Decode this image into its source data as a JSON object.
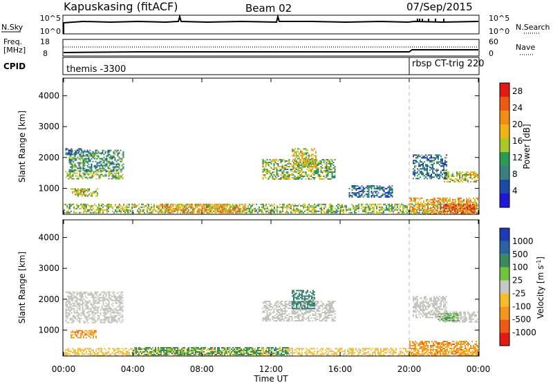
{
  "header": {
    "station": "Kapuskasing (fitACF)",
    "beam": "Beam 02",
    "date": "07/Sep/2015"
  },
  "nsky_panel": {
    "label": "N.Sky",
    "right_label": "N.Search",
    "ticks": [
      "10^5",
      "10^0"
    ],
    "right_ticks": [
      "10^5",
      "10^0"
    ]
  },
  "freq_panel": {
    "label_line1": "Freq.",
    "label_line2": "[MHz]",
    "ticks": [
      "18",
      "8"
    ],
    "right_ticks": [
      "60",
      "0"
    ],
    "right_label": "Nave"
  },
  "cpid_panel": {
    "label": "CPID",
    "segments": [
      {
        "name": "themis -3300",
        "start_hour": 0
      },
      {
        "name": "rbsp CT-trig 220",
        "start_hour": 20.05
      }
    ]
  },
  "colors": {
    "power_scale": [
      "#1d17d8",
      "#1d4aa6",
      "#3b7e7e",
      "#2b9a52",
      "#a8c82a",
      "#f2b315",
      "#f18d14",
      "#ee5a13",
      "#e31a14"
    ],
    "velocity_scale": [
      "#e31a14",
      "#ee5a13",
      "#f5951a",
      "#f6bd2a",
      "#c8c8c4",
      "#6fc43c",
      "#3b8a5e",
      "#2a63a3",
      "#1d3bb5"
    ],
    "ground_scatter": "#c4c4bc"
  },
  "chart_data": [
    {
      "type": "heatmap",
      "panel": "power",
      "ylabel": "Slant Range [km]",
      "xlabel": "",
      "xlim": [
        0,
        24
      ],
      "ylim": [
        180,
        4550
      ],
      "yticks": [
        "1000",
        "2000",
        "3000",
        "4000"
      ],
      "colorbar": {
        "label": "Power [dB]",
        "ticks": [
          "4",
          "8",
          "12",
          "16",
          "20",
          "24",
          "28"
        ],
        "range": [
          0,
          30
        ]
      },
      "regions": [
        {
          "t0": 0.1,
          "t1": 3.4,
          "r0": 1300,
          "r1": 1600,
          "level": 14
        },
        {
          "t0": 0.3,
          "t1": 3.5,
          "r0": 1550,
          "r1": 2250,
          "level": 10
        },
        {
          "t0": 0.4,
          "t1": 2.0,
          "r0": 750,
          "r1": 1000,
          "level": 16
        },
        {
          "t0": 0.1,
          "t1": 1.0,
          "r0": 2100,
          "r1": 2300,
          "level": 6
        },
        {
          "t0": 0.0,
          "t1": 24.0,
          "r0": 190,
          "r1": 500,
          "level": 14
        },
        {
          "t0": 5.5,
          "t1": 10.5,
          "r0": 190,
          "r1": 500,
          "level": 20
        },
        {
          "t0": 11.5,
          "t1": 15.7,
          "r0": 1300,
          "r1": 1950,
          "level": 14
        },
        {
          "t0": 13.2,
          "t1": 14.6,
          "r0": 1700,
          "r1": 2300,
          "level": 17
        },
        {
          "t0": 20.0,
          "t1": 24.0,
          "r0": 190,
          "r1": 700,
          "level": 20
        },
        {
          "t0": 21.8,
          "t1": 23.8,
          "r0": 190,
          "r1": 500,
          "level": 26
        },
        {
          "t0": 22.0,
          "t1": 24.0,
          "r0": 1200,
          "r1": 1550,
          "level": 17
        },
        {
          "t0": 20.2,
          "t1": 22.2,
          "r0": 1300,
          "r1": 2100,
          "level": 8
        },
        {
          "t0": 16.5,
          "t1": 19.0,
          "r0": 700,
          "r1": 1100,
          "level": 7
        }
      ]
    },
    {
      "type": "heatmap",
      "panel": "velocity",
      "ylabel": "Slant Range [km]",
      "xlabel": "Time UT",
      "xlim": [
        0,
        24
      ],
      "ylim": [
        180,
        4550
      ],
      "yticks": [
        "1000",
        "2000",
        "3000",
        "4000"
      ],
      "xticks": [
        "00:00",
        "04:00",
        "08:00",
        "12:00",
        "16:00",
        "20:00",
        "00:00"
      ],
      "colorbar": {
        "label": "Velocity [m s^-1]",
        "ticks": [
          "1000",
          "500",
          "100",
          "25",
          "-25",
          "-100",
          "-500",
          "-1000"
        ]
      },
      "regions": [
        {
          "t0": 0.1,
          "t1": 3.4,
          "r0": 1250,
          "r1": 2250,
          "kind": "ground"
        },
        {
          "t0": 0.4,
          "t1": 1.9,
          "r0": 750,
          "r1": 1000,
          "vel": -300
        },
        {
          "t0": 0.0,
          "t1": 24.0,
          "r0": 190,
          "r1": 420,
          "vel": -50
        },
        {
          "t0": 4.0,
          "t1": 13.0,
          "r0": 190,
          "r1": 450,
          "vel": 150
        },
        {
          "t0": 11.5,
          "t1": 15.7,
          "r0": 1300,
          "r1": 1950,
          "kind": "ground"
        },
        {
          "t0": 13.2,
          "t1": 14.5,
          "r0": 1700,
          "r1": 2300,
          "vel": 400
        },
        {
          "t0": 20.0,
          "t1": 24.0,
          "r0": 190,
          "r1": 650,
          "vel": -300
        },
        {
          "t0": 22.0,
          "t1": 24.0,
          "r0": 1250,
          "r1": 1600,
          "kind": "ground"
        },
        {
          "t0": 21.5,
          "t1": 22.8,
          "r0": 1300,
          "r1": 1550,
          "vel": 120
        },
        {
          "t0": 20.2,
          "t1": 22.2,
          "r0": 1400,
          "r1": 2100,
          "kind": "ground"
        }
      ]
    }
  ],
  "dashed_marker_hour": 20.05
}
